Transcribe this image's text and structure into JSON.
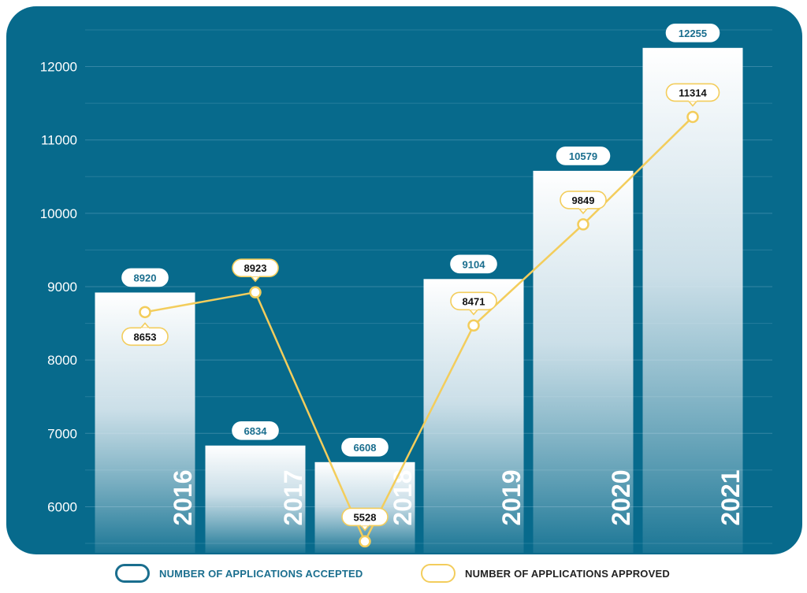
{
  "colors": {
    "panel": "#076a8c",
    "grid": "#3b8aa8",
    "accepted_label": "#1a6e8e",
    "approved_line": "#f3cd5c",
    "axis_text": "#ffffff"
  },
  "legend": {
    "accepted": "NUMBER OF APPLICATIONS ACCEPTED",
    "approved": "NUMBER OF APPLICATIONS APPROVED"
  },
  "chart_data": {
    "type": "bar",
    "title": "",
    "xlabel": "",
    "ylabel": "",
    "categories": [
      "2016",
      "2017",
      "2018",
      "2019",
      "2020",
      "2021"
    ],
    "ylim": [
      5350,
      12650
    ],
    "yticks": [
      6000,
      7000,
      8000,
      9000,
      10000,
      11000,
      12000
    ],
    "grid": true,
    "legend_position": "bottom",
    "series": [
      {
        "name": "NUMBER OF APPLICATIONS ACCEPTED",
        "type": "bar",
        "values": [
          8920,
          6834,
          6608,
          9104,
          10579,
          12255
        ]
      },
      {
        "name": "NUMBER OF APPLICATIONS APPROVED",
        "type": "line",
        "values": [
          8653,
          8923,
          5528,
          8471,
          9849,
          11314
        ]
      }
    ]
  }
}
